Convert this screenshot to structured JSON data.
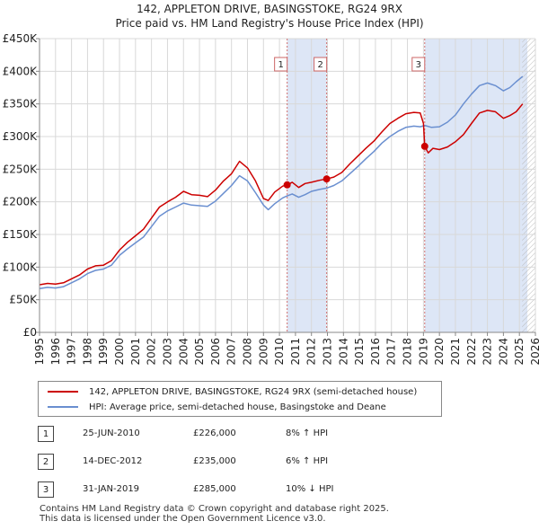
{
  "title_line1": "142, APPLETON DRIVE, BASINGSTOKE, RG24 9RX",
  "title_line2": "Price paid vs. HM Land Registry's House Price Index (HPI)",
  "colors": {
    "price_paid": "#cc0000",
    "hpi": "#6a8fd0",
    "shade": "#dde6f6",
    "vline": "#d07070"
  },
  "chart_data": {
    "type": "line",
    "x_range": [
      1995,
      2026
    ],
    "ylim": [
      0,
      450000
    ],
    "y_ticks": [
      {
        "value": 0,
        "label": "£0"
      },
      {
        "value": 50000,
        "label": "£50K"
      },
      {
        "value": 100000,
        "label": "£100K"
      },
      {
        "value": 150000,
        "label": "£150K"
      },
      {
        "value": 200000,
        "label": "£200K"
      },
      {
        "value": 250000,
        "label": "£250K"
      },
      {
        "value": 300000,
        "label": "£300K"
      },
      {
        "value": 350000,
        "label": "£350K"
      },
      {
        "value": 400000,
        "label": "£400K"
      },
      {
        "value": 450000,
        "label": "£450K"
      }
    ],
    "x_ticks": [
      "1995",
      "1996",
      "1997",
      "1998",
      "1999",
      "2000",
      "2001",
      "2002",
      "2003",
      "2004",
      "2005",
      "2006",
      "2007",
      "2008",
      "2009",
      "2010",
      "2011",
      "2012",
      "2013",
      "2014",
      "2015",
      "2016",
      "2017",
      "2018",
      "2019",
      "2020",
      "2021",
      "2022",
      "2023",
      "2024",
      "2025",
      "2026"
    ],
    "grid": true,
    "shaded_ranges": [
      [
        2010.48,
        2012.95
      ],
      [
        2019.08,
        2025.5
      ]
    ],
    "hatch_from": 2025.17,
    "series": [
      {
        "name": "142, APPLETON DRIVE, BASINGSTOKE, RG24 9RX (semi-detached house)",
        "color": "#cc0000",
        "points": [
          [
            1995.0,
            73000
          ],
          [
            1995.5,
            75000
          ],
          [
            1996.0,
            74000
          ],
          [
            1996.5,
            76000
          ],
          [
            1997.0,
            82000
          ],
          [
            1997.5,
            88000
          ],
          [
            1998.0,
            97000
          ],
          [
            1998.5,
            102000
          ],
          [
            1999.0,
            103000
          ],
          [
            1999.5,
            110000
          ],
          [
            2000.0,
            126000
          ],
          [
            2000.5,
            138000
          ],
          [
            2001.0,
            148000
          ],
          [
            2001.5,
            158000
          ],
          [
            2002.0,
            175000
          ],
          [
            2002.5,
            192000
          ],
          [
            2003.0,
            200000
          ],
          [
            2003.5,
            207000
          ],
          [
            2004.0,
            216000
          ],
          [
            2004.5,
            211000
          ],
          [
            2005.0,
            210000
          ],
          [
            2005.5,
            208000
          ],
          [
            2006.0,
            218000
          ],
          [
            2006.5,
            232000
          ],
          [
            2007.0,
            243000
          ],
          [
            2007.5,
            262000
          ],
          [
            2008.0,
            252000
          ],
          [
            2008.5,
            232000
          ],
          [
            2009.0,
            205000
          ],
          [
            2009.3,
            202000
          ],
          [
            2009.7,
            215000
          ],
          [
            2010.2,
            224000
          ],
          [
            2010.48,
            226000
          ],
          [
            2010.8,
            230000
          ],
          [
            2011.2,
            222000
          ],
          [
            2011.6,
            228000
          ],
          [
            2012.0,
            230000
          ],
          [
            2012.5,
            233000
          ],
          [
            2012.95,
            235000
          ],
          [
            2013.4,
            238000
          ],
          [
            2013.9,
            245000
          ],
          [
            2014.4,
            258000
          ],
          [
            2014.9,
            270000
          ],
          [
            2015.4,
            282000
          ],
          [
            2015.9,
            293000
          ],
          [
            2016.4,
            307000
          ],
          [
            2016.9,
            320000
          ],
          [
            2017.4,
            328000
          ],
          [
            2017.9,
            335000
          ],
          [
            2018.4,
            337000
          ],
          [
            2018.8,
            336000
          ],
          [
            2019.0,
            320000
          ],
          [
            2019.08,
            285000
          ],
          [
            2019.3,
            275000
          ],
          [
            2019.6,
            282000
          ],
          [
            2020.0,
            280000
          ],
          [
            2020.5,
            284000
          ],
          [
            2021.0,
            292000
          ],
          [
            2021.5,
            303000
          ],
          [
            2022.0,
            320000
          ],
          [
            2022.5,
            336000
          ],
          [
            2023.0,
            340000
          ],
          [
            2023.5,
            338000
          ],
          [
            2024.0,
            328000
          ],
          [
            2024.4,
            332000
          ],
          [
            2024.8,
            338000
          ],
          [
            2025.2,
            350000
          ]
        ],
        "markers": [
          [
            2010.48,
            226000
          ],
          [
            2012.95,
            235000
          ],
          [
            2019.08,
            285000
          ]
        ]
      },
      {
        "name": "HPI: Average price, semi-detached house, Basingstoke and Deane",
        "color": "#6a8fd0",
        "points": [
          [
            1995.0,
            67000
          ],
          [
            1995.5,
            69000
          ],
          [
            1996.0,
            68000
          ],
          [
            1996.5,
            70000
          ],
          [
            1997.0,
            76000
          ],
          [
            1997.5,
            82000
          ],
          [
            1998.0,
            90000
          ],
          [
            1998.5,
            95000
          ],
          [
            1999.0,
            97000
          ],
          [
            1999.5,
            103000
          ],
          [
            2000.0,
            118000
          ],
          [
            2000.5,
            128000
          ],
          [
            2001.0,
            137000
          ],
          [
            2001.5,
            146000
          ],
          [
            2002.0,
            162000
          ],
          [
            2002.5,
            178000
          ],
          [
            2003.0,
            186000
          ],
          [
            2003.5,
            192000
          ],
          [
            2004.0,
            198000
          ],
          [
            2004.5,
            195000
          ],
          [
            2005.0,
            194000
          ],
          [
            2005.5,
            193000
          ],
          [
            2006.0,
            201000
          ],
          [
            2006.5,
            213000
          ],
          [
            2007.0,
            225000
          ],
          [
            2007.5,
            240000
          ],
          [
            2008.0,
            232000
          ],
          [
            2008.5,
            214000
          ],
          [
            2009.0,
            195000
          ],
          [
            2009.3,
            188000
          ],
          [
            2009.7,
            197000
          ],
          [
            2010.2,
            206000
          ],
          [
            2010.48,
            209000
          ],
          [
            2010.8,
            212000
          ],
          [
            2011.2,
            207000
          ],
          [
            2011.6,
            211000
          ],
          [
            2012.0,
            216000
          ],
          [
            2012.5,
            219000
          ],
          [
            2012.95,
            221000
          ],
          [
            2013.4,
            225000
          ],
          [
            2013.9,
            232000
          ],
          [
            2014.4,
            243000
          ],
          [
            2014.9,
            254000
          ],
          [
            2015.4,
            266000
          ],
          [
            2015.9,
            277000
          ],
          [
            2016.4,
            290000
          ],
          [
            2016.9,
            300000
          ],
          [
            2017.4,
            308000
          ],
          [
            2017.9,
            314000
          ],
          [
            2018.4,
            316000
          ],
          [
            2018.8,
            315000
          ],
          [
            2019.08,
            317000
          ],
          [
            2019.5,
            314000
          ],
          [
            2020.0,
            315000
          ],
          [
            2020.5,
            322000
          ],
          [
            2021.0,
            333000
          ],
          [
            2021.5,
            350000
          ],
          [
            2022.0,
            365000
          ],
          [
            2022.5,
            378000
          ],
          [
            2023.0,
            382000
          ],
          [
            2023.5,
            378000
          ],
          [
            2024.0,
            370000
          ],
          [
            2024.4,
            375000
          ],
          [
            2024.8,
            384000
          ],
          [
            2025.2,
            392000
          ]
        ]
      }
    ]
  },
  "legend": {
    "price_paid_label": "142, APPLETON DRIVE, BASINGSTOKE, RG24 9RX (semi-detached house)",
    "hpi_label": "HPI: Average price, semi-detached house, Basingstoke and Deane"
  },
  "sales": [
    {
      "num": "1",
      "date": "25-JUN-2010",
      "price": "£226,000",
      "hpi": "8% ↑ HPI",
      "year": 2010.48
    },
    {
      "num": "2",
      "date": "14-DEC-2012",
      "price": "£235,000",
      "hpi": "6% ↑ HPI",
      "year": 2012.95
    },
    {
      "num": "3",
      "date": "31-JAN-2019",
      "price": "£285,000",
      "hpi": "10% ↓ HPI",
      "year": 2019.08
    }
  ],
  "footer_line1": "Contains HM Land Registry data © Crown copyright and database right 2025.",
  "footer_line2": "This data is licensed under the Open Government Licence v3.0."
}
